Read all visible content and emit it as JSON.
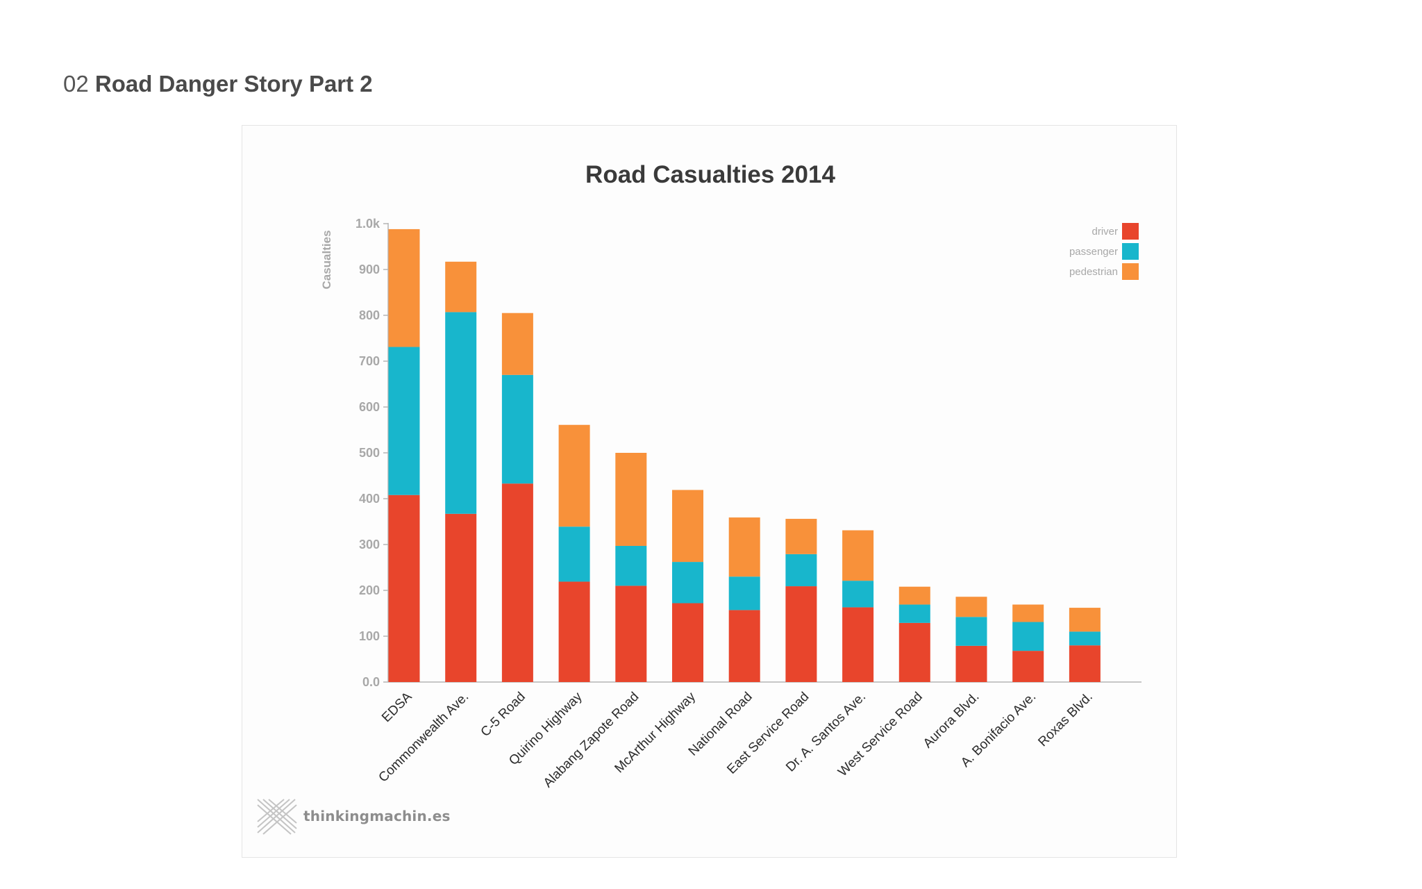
{
  "page": {
    "number": "02",
    "title": "Road Danger Story Part 2"
  },
  "brand": {
    "name": "thinkingmachin.es"
  },
  "colors": {
    "driver": "#e8452c",
    "passenger": "#18b6cc",
    "pedestrian": "#f8913a",
    "axis": "#b5b5b5",
    "tick_text": "#a8a8a8",
    "label_text": "#2b2b2b"
  },
  "chart_data": {
    "type": "bar",
    "stacked": true,
    "title": "Road Casualties 2014",
    "xlabel": "",
    "ylabel": "Casualties",
    "ylim": [
      0,
      1000
    ],
    "yticks": [
      0,
      100,
      200,
      300,
      400,
      500,
      600,
      700,
      800,
      900,
      1000
    ],
    "ytick_labels": [
      "0.0",
      "100",
      "200",
      "300",
      "400",
      "500",
      "600",
      "700",
      "800",
      "900",
      "1.0k"
    ],
    "legend_position": "top-right",
    "categories": [
      "EDSA",
      "Commonwealth Ave.",
      "C-5 Road",
      "Quirino Highway",
      "Alabang Zapote Road",
      "McArthur Highway",
      "National Road",
      "East Service Road",
      "Dr. A. Santos Ave.",
      "West Service Road",
      "Aurora Blvd.",
      "A. Bonifacio Ave.",
      "Roxas Blvd."
    ],
    "series": [
      {
        "name": "driver",
        "color": "#e8452c",
        "values": [
          408,
          367,
          433,
          219,
          210,
          172,
          157,
          209,
          163,
          129,
          79,
          68,
          80
        ]
      },
      {
        "name": "passenger",
        "color": "#18b6cc",
        "values": [
          323,
          440,
          237,
          120,
          87,
          90,
          73,
          70,
          58,
          40,
          63,
          63,
          30
        ]
      },
      {
        "name": "pedestrian",
        "color": "#f8913a",
        "values": [
          257,
          110,
          135,
          222,
          203,
          157,
          129,
          77,
          110,
          39,
          44,
          38,
          52
        ]
      }
    ]
  }
}
